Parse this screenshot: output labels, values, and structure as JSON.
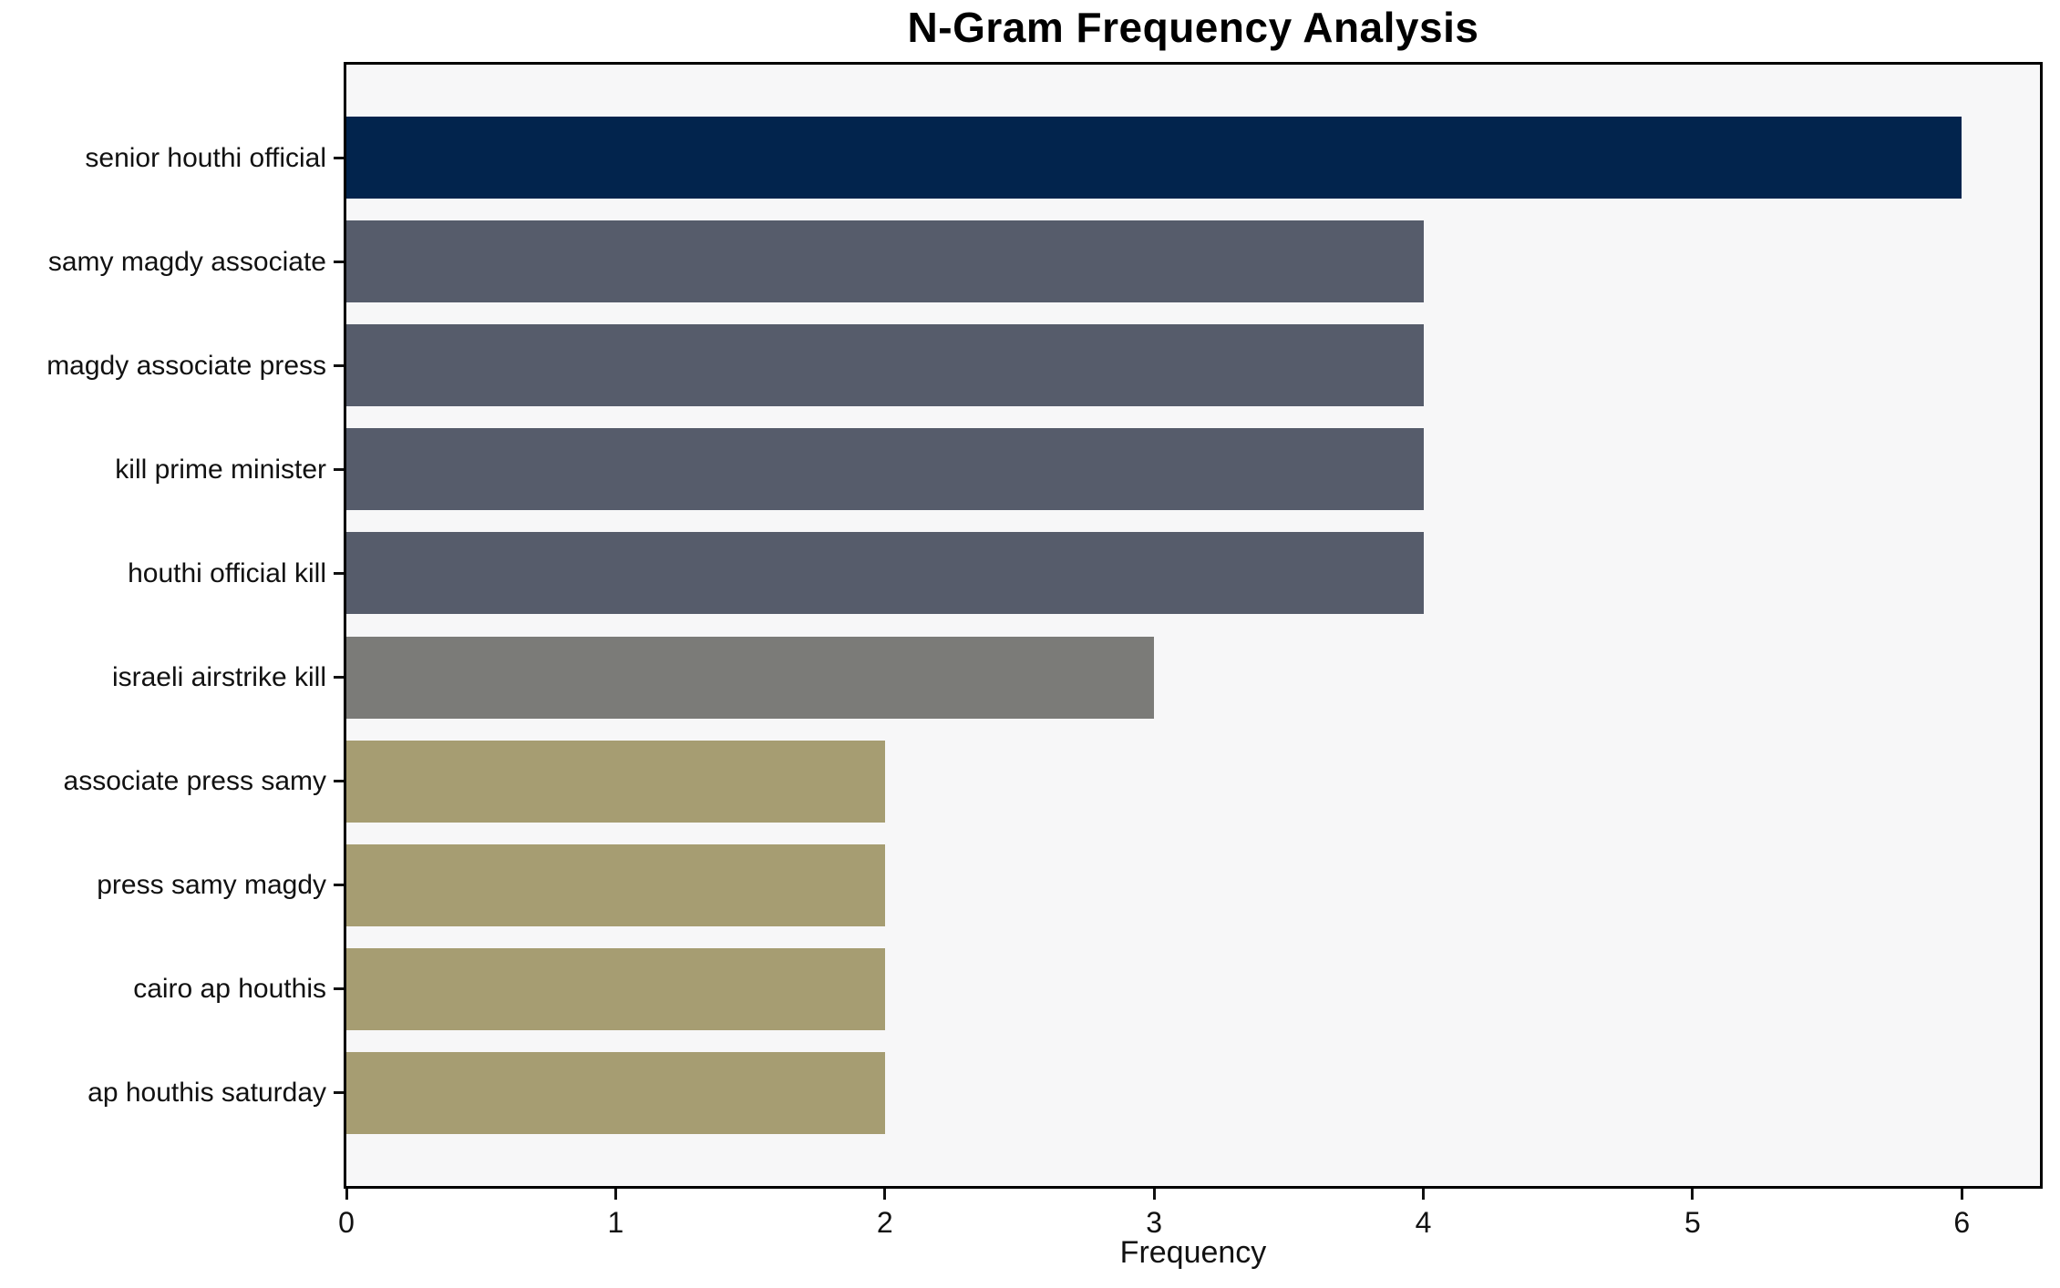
{
  "chart_data": {
    "type": "bar",
    "orientation": "horizontal",
    "title": "N-Gram Frequency Analysis",
    "xlabel": "Frequency",
    "ylabel": "",
    "categories": [
      "senior houthi official",
      "samy magdy associate",
      "magdy associate press",
      "kill prime minister",
      "houthi official kill",
      "israeli airstrike kill",
      "associate press samy",
      "press samy magdy",
      "cairo ap houthis",
      "ap houthis saturday"
    ],
    "values": [
      6,
      4,
      4,
      4,
      4,
      3,
      2,
      2,
      2,
      2
    ],
    "bar_colors": [
      "#02244d",
      "#565c6b",
      "#565c6b",
      "#565c6b",
      "#565c6b",
      "#7b7b78",
      "#a69d72",
      "#a69d72",
      "#a69d72",
      "#a69d72"
    ],
    "xticks": [
      "0",
      "1",
      "2",
      "3",
      "4",
      "5",
      "6"
    ],
    "xlim": [
      0,
      6.29
    ],
    "grid": false,
    "legend": null,
    "plot_background": "#f7f7f8",
    "figure_background": "#ffffff",
    "spine_color": "#000000",
    "text_color": "#111111"
  }
}
